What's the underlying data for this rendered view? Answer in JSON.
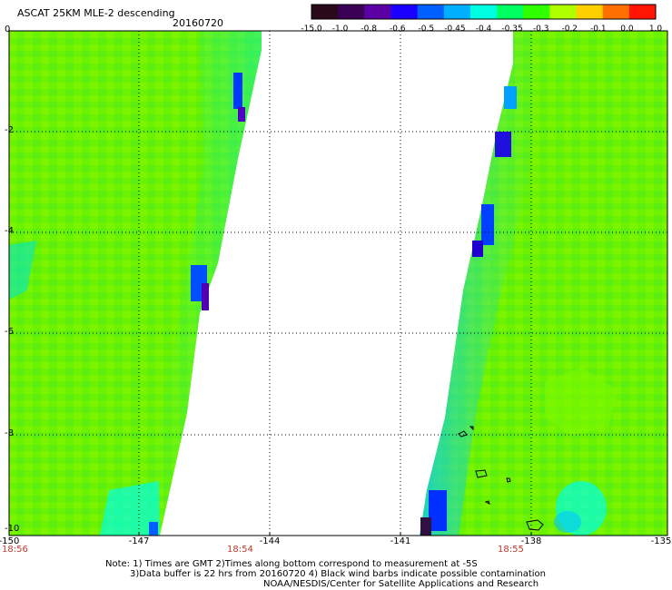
{
  "header": {
    "title": "ASCAT 25KM MLE-2 descending",
    "date": "20160720"
  },
  "colorbar": {
    "labels": [
      "-15.0",
      "-1.0",
      "-0.8",
      "-0.6",
      "-0.5",
      "-0.45",
      "-0.4",
      "-0.35",
      "-0.3",
      "-0.2",
      "-0.1",
      "0.0",
      "1.0"
    ],
    "colors": [
      "#2a0a1a",
      "#3a0055",
      "#5a00a5",
      "#1a00ff",
      "#0060ff",
      "#00b0ff",
      "#00ffe0",
      "#00ff60",
      "#30ff00",
      "#b0ff00",
      "#ffd000",
      "#ff7000",
      "#ff1500"
    ]
  },
  "axes": {
    "x_ticks": [
      "-150",
      "-147",
      "-144",
      "-141",
      "-138",
      "-135"
    ],
    "y_ticks": [
      "0",
      "-2",
      "-4",
      "-6",
      "-8",
      "-10"
    ]
  },
  "times": [
    "18:56",
    "18:54",
    "18:55"
  ],
  "notes": [
    "Note: 1) Times are GMT 2)Times along bottom correspond to measurement at -5S",
    "3)Data buffer is 22 hrs from 20160720 4) Black wind barbs indicate possible contamination",
    "NOAA/NESDIS/Center for Satellite Applications and Research"
  ]
}
